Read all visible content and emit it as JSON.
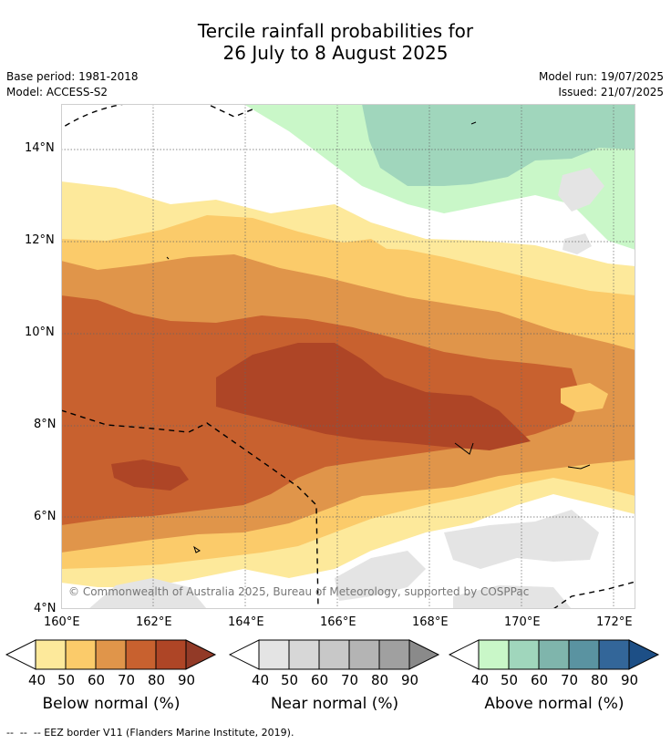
{
  "header": {
    "title_line1": "Tercile rainfall probabilities for",
    "title_line2": "26 July to 8 August 2025",
    "base_period": "Base period: 1981-2018",
    "model": "Model: ACCESS-S2",
    "model_run": "Model run: 19/07/2025",
    "issued": "Issued: 21/07/2025"
  },
  "map": {
    "lat_labels": [
      "14°N",
      "12°N",
      "10°N",
      "8°N",
      "6°N",
      "4°N"
    ],
    "lon_labels": [
      "160°E",
      "162°E",
      "164°E",
      "166°E",
      "168°E",
      "170°E",
      "172°E"
    ],
    "copyright": "© Commonwealth of Australia 2025, Bureau of Meteorology, supported by COSPPac"
  },
  "legends": [
    {
      "caption": "Below normal (%)",
      "ticks": [
        "40",
        "50",
        "60",
        "70",
        "80",
        "90"
      ],
      "colors": [
        "#fde99b",
        "#fbcb6a",
        "#e0954a",
        "#c8612f",
        "#ae4526",
        "#923a27"
      ]
    },
    {
      "caption": "Near normal (%)",
      "ticks": [
        "40",
        "50",
        "60",
        "70",
        "80",
        "90"
      ],
      "colors": [
        "#e4e4e4",
        "#d7d7d7",
        "#c8c8c8",
        "#b4b4b4",
        "#a0a0a0",
        "#8a8a8a"
      ]
    },
    {
      "caption": "Above normal (%)",
      "ticks": [
        "40",
        "50",
        "60",
        "70",
        "80",
        "90"
      ],
      "colors": [
        "#c9f7c8",
        "#a0d6bc",
        "#7fb5ac",
        "#5a93a1",
        "#336699",
        "#1d4f86"
      ]
    }
  ],
  "footer": {
    "eez_note": "--  --  -- EEZ border V11 (Flanders Marine Institute, 2019)."
  }
}
